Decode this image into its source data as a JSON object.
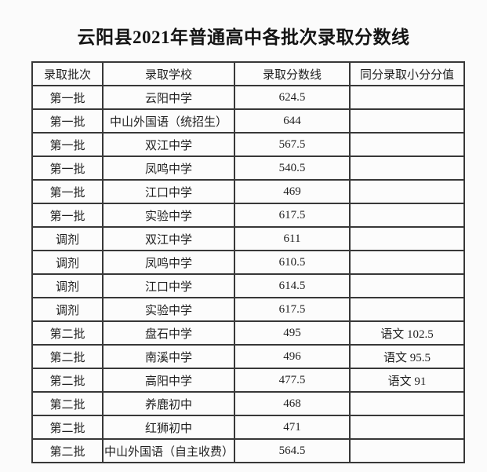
{
  "title": "云阳县2021年普通高中各批次录取分数线",
  "table": {
    "headers": [
      "录取批次",
      "录取学校",
      "录取分数线",
      "同分录取小分分值"
    ],
    "rows": [
      {
        "batch": "第一批",
        "school": "云阳中学",
        "score": "624.5",
        "tiebreak": ""
      },
      {
        "batch": "第一批",
        "school": "中山外国语（统招生）",
        "score": "644",
        "tiebreak": ""
      },
      {
        "batch": "第一批",
        "school": "双江中学",
        "score": "567.5",
        "tiebreak": ""
      },
      {
        "batch": "第一批",
        "school": "凤鸣中学",
        "score": "540.5",
        "tiebreak": ""
      },
      {
        "batch": "第一批",
        "school": "江口中学",
        "score": "469",
        "tiebreak": ""
      },
      {
        "batch": "第一批",
        "school": "实验中学",
        "score": "617.5",
        "tiebreak": ""
      },
      {
        "batch": "调剂",
        "school": "双江中学",
        "score": "611",
        "tiebreak": ""
      },
      {
        "batch": "调剂",
        "school": "凤鸣中学",
        "score": "610.5",
        "tiebreak": ""
      },
      {
        "batch": "调剂",
        "school": "江口中学",
        "score": "614.5",
        "tiebreak": ""
      },
      {
        "batch": "调剂",
        "school": "实验中学",
        "score": "617.5",
        "tiebreak": ""
      },
      {
        "batch": "第二批",
        "school": "盘石中学",
        "score": "495",
        "tiebreak": "语文 102.5"
      },
      {
        "batch": "第二批",
        "school": "南溪中学",
        "score": "496",
        "tiebreak": "语文 95.5"
      },
      {
        "batch": "第二批",
        "school": "高阳中学",
        "score": "477.5",
        "tiebreak": "语文 91"
      },
      {
        "batch": "第二批",
        "school": "养鹿初中",
        "score": "468",
        "tiebreak": ""
      },
      {
        "batch": "第二批",
        "school": "红狮初中",
        "score": "471",
        "tiebreak": ""
      },
      {
        "batch": "第二批",
        "school": "中山外国语（自主收费）",
        "score": "564.5",
        "tiebreak": ""
      }
    ]
  }
}
